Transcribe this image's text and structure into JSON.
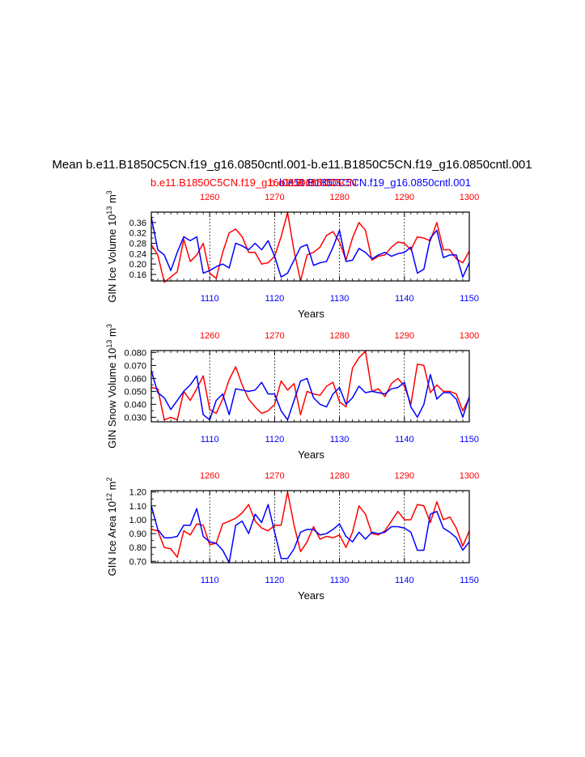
{
  "figure": {
    "title": "Mean b.e11.B1850C5CN.f19_g16.0850cntl.001-b.e11.B1850C5CN.f19_g16.0850cntl.001",
    "subtitle_left": "b.e11.B1850C5CN.f19_g16.0850cntl.001",
    "subtitle_right": "b.e11.B1850C5CN.f19_g16.0850cntl.001",
    "overlap_label": "b.e11.B1850C5CN",
    "xlabel": "Years"
  },
  "colors": {
    "red": "#ff0000",
    "blue": "#0000ff",
    "axis": "#000000"
  },
  "chart_data": [
    {
      "type": "line",
      "ylabel_base": "GIN Ice Volume 10",
      "ylabel_exp": "13",
      "ylabel_unit": " m",
      "ylabel_unit_exp": "3",
      "ylim": [
        0.135,
        0.4
      ],
      "yticks": [
        0.16,
        0.2,
        0.24,
        0.28,
        0.32,
        0.36
      ],
      "yticklabels": [
        "0.16",
        "0.20",
        "0.24",
        "0.28",
        "0.32",
        "0.36"
      ],
      "x_bottom": {
        "range": [
          1101,
          1150
        ],
        "ticks": [
          1110,
          1120,
          1130,
          1140,
          1150
        ],
        "labels": [
          "1110",
          "1120",
          "1130",
          "1140",
          "1150"
        ]
      },
      "x_top": {
        "range": [
          1251,
          1300
        ],
        "ticks": [
          1260,
          1270,
          1280,
          1290,
          1300
        ],
        "labels": [
          "1260",
          "1270",
          "1280",
          "1290",
          "1300"
        ]
      },
      "series": [
        {
          "name": "b.e11.B1850C5CN.f19_g16.0850cntl.001 (1251-1300)",
          "color": "red",
          "values": [
            0.275,
            0.235,
            0.13,
            0.15,
            0.17,
            0.295,
            0.21,
            0.235,
            0.28,
            0.165,
            0.145,
            0.245,
            0.32,
            0.335,
            0.305,
            0.245,
            0.245,
            0.2,
            0.205,
            0.23,
            0.305,
            0.398,
            0.25,
            0.135,
            0.235,
            0.245,
            0.265,
            0.31,
            0.325,
            0.285,
            0.215,
            0.3,
            0.36,
            0.33,
            0.215,
            0.23,
            0.235,
            0.265,
            0.285,
            0.28,
            0.255,
            0.305,
            0.3,
            0.29,
            0.36,
            0.255,
            0.255,
            0.22,
            0.205,
            0.25
          ]
        },
        {
          "name": "b.e11.B1850C5CN.f19_g16.0850cntl.001 (1101-1150)",
          "color": "blue",
          "values": [
            0.38,
            0.255,
            0.235,
            0.175,
            0.245,
            0.305,
            0.29,
            0.305,
            0.165,
            0.175,
            0.19,
            0.2,
            0.185,
            0.28,
            0.27,
            0.255,
            0.28,
            0.255,
            0.29,
            0.23,
            0.15,
            0.165,
            0.215,
            0.265,
            0.275,
            0.195,
            0.205,
            0.21,
            0.265,
            0.33,
            0.21,
            0.215,
            0.26,
            0.245,
            0.22,
            0.235,
            0.245,
            0.23,
            0.24,
            0.245,
            0.265,
            0.165,
            0.18,
            0.3,
            0.33,
            0.225,
            0.235,
            0.235,
            0.15,
            0.205
          ]
        }
      ]
    },
    {
      "type": "line",
      "ylabel_base": "GIN Snow Volume 10",
      "ylabel_exp": "13",
      "ylabel_unit": " m",
      "ylabel_unit_exp": "3",
      "ylim": [
        0.0265,
        0.0815
      ],
      "yticks": [
        0.03,
        0.04,
        0.05,
        0.06,
        0.07,
        0.08
      ],
      "yticklabels": [
        "0.030",
        "0.040",
        "0.050",
        "0.060",
        "0.070",
        "0.080"
      ],
      "x_bottom": {
        "range": [
          1101,
          1150
        ],
        "ticks": [
          1110,
          1120,
          1130,
          1140,
          1150
        ],
        "labels": [
          "1110",
          "1120",
          "1130",
          "1140",
          "1150"
        ]
      },
      "x_top": {
        "range": [
          1251,
          1300
        ],
        "ticks": [
          1260,
          1270,
          1280,
          1290,
          1300
        ],
        "labels": [
          "1260",
          "1270",
          "1280",
          "1290",
          "1300"
        ]
      },
      "series": [
        {
          "name": "b.e11.B1850C5CN.f19_g16.0850cntl.001 (1251-1300)",
          "color": "red",
          "values": [
            0.053,
            0.052,
            0.028,
            0.03,
            0.028,
            0.05,
            0.043,
            0.052,
            0.062,
            0.036,
            0.033,
            0.044,
            0.059,
            0.069,
            0.055,
            0.044,
            0.038,
            0.033,
            0.035,
            0.04,
            0.058,
            0.051,
            0.056,
            0.032,
            0.05,
            0.048,
            0.047,
            0.054,
            0.057,
            0.042,
            0.038,
            0.068,
            0.076,
            0.081,
            0.05,
            0.052,
            0.046,
            0.056,
            0.06,
            0.054,
            0.04,
            0.071,
            0.07,
            0.049,
            0.055,
            0.05,
            0.05,
            0.048,
            0.035,
            0.045
          ]
        },
        {
          "name": "b.e11.B1850C5CN.f19_g16.0850cntl.001 (1101-1150)",
          "color": "blue",
          "values": [
            0.066,
            0.049,
            0.045,
            0.036,
            0.043,
            0.05,
            0.055,
            0.062,
            0.032,
            0.028,
            0.043,
            0.048,
            0.032,
            0.052,
            0.051,
            0.05,
            0.051,
            0.057,
            0.048,
            0.048,
            0.035,
            0.028,
            0.043,
            0.058,
            0.06,
            0.045,
            0.04,
            0.038,
            0.048,
            0.053,
            0.04,
            0.045,
            0.054,
            0.049,
            0.05,
            0.049,
            0.048,
            0.052,
            0.053,
            0.057,
            0.038,
            0.03,
            0.04,
            0.063,
            0.044,
            0.049,
            0.049,
            0.044,
            0.03,
            0.046
          ]
        }
      ]
    },
    {
      "type": "line",
      "ylabel_base": "GIN Ice Area 10",
      "ylabel_exp": "12",
      "ylabel_unit": " m",
      "ylabel_unit_exp": "2",
      "ylim": [
        0.69,
        1.21
      ],
      "yticks": [
        0.7,
        0.8,
        0.9,
        1.0,
        1.1,
        1.2
      ],
      "yticklabels": [
        "0.70",
        "0.80",
        "0.90",
        "1.00",
        "1.10",
        "1.20"
      ],
      "x_bottom": {
        "range": [
          1101,
          1150
        ],
        "ticks": [
          1110,
          1120,
          1130,
          1140,
          1150
        ],
        "labels": [
          "1110",
          "1120",
          "1130",
          "1140",
          "1150"
        ]
      },
      "x_top": {
        "range": [
          1251,
          1300
        ],
        "ticks": [
          1260,
          1270,
          1280,
          1290,
          1300
        ],
        "labels": [
          "1260",
          "1270",
          "1280",
          "1290",
          "1300"
        ]
      },
      "series": [
        {
          "name": "b.e11.B1850C5CN.f19_g16.0850cntl.001 (1251-1300)",
          "color": "red",
          "values": [
            0.93,
            0.92,
            0.8,
            0.79,
            0.73,
            0.92,
            0.89,
            0.97,
            0.96,
            0.82,
            0.83,
            0.97,
            0.99,
            1.01,
            1.05,
            1.11,
            0.99,
            0.94,
            0.92,
            0.96,
            0.96,
            1.2,
            0.96,
            0.77,
            0.84,
            0.95,
            0.86,
            0.88,
            0.87,
            0.89,
            0.8,
            0.91,
            1.1,
            1.04,
            0.9,
            0.89,
            0.92,
            0.99,
            1.06,
            1.0,
            1.0,
            1.11,
            1.1,
            0.98,
            1.13,
            1.0,
            1.02,
            0.94,
            0.81,
            0.92
          ]
        },
        {
          "name": "b.e11.B1850C5CN.f19_g16.0850cntl.001 (1101-1150)",
          "color": "blue",
          "values": [
            1.1,
            0.93,
            0.87,
            0.87,
            0.88,
            0.96,
            0.96,
            1.08,
            0.88,
            0.84,
            0.83,
            0.78,
            0.69,
            0.96,
            0.99,
            0.9,
            1.04,
            0.98,
            1.11,
            0.91,
            0.72,
            0.72,
            0.79,
            0.91,
            0.93,
            0.93,
            0.89,
            0.9,
            0.93,
            0.97,
            0.88,
            0.84,
            0.91,
            0.86,
            0.91,
            0.9,
            0.91,
            0.95,
            0.95,
            0.94,
            0.91,
            0.78,
            0.78,
            1.04,
            1.06,
            0.94,
            0.91,
            0.87,
            0.78,
            0.84
          ]
        }
      ]
    }
  ]
}
